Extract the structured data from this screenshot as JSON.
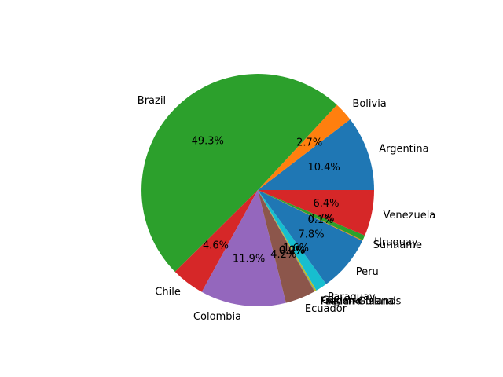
{
  "chart_data": {
    "type": "pie",
    "title": "",
    "start_angle_deg": 0,
    "direction": "counterclockwise",
    "legend": "none",
    "slices": [
      {
        "label": "Argentina",
        "value": 10.4,
        "pct_text": "10.4%",
        "color": "#1f77b4"
      },
      {
        "label": "Bolivia",
        "value": 2.7,
        "pct_text": "2.7%",
        "color": "#ff7f0e"
      },
      {
        "label": "Brazil",
        "value": 49.3,
        "pct_text": "49.3%",
        "color": "#2ca02c"
      },
      {
        "label": "Chile",
        "value": 4.6,
        "pct_text": "4.6%",
        "color": "#d62728"
      },
      {
        "label": "Colombia",
        "value": 11.9,
        "pct_text": "11.9%",
        "color": "#9467bd"
      },
      {
        "label": "Ecuador",
        "value": 4.2,
        "pct_text": "4.2%",
        "color": "#8c564b"
      },
      {
        "label": "Falkland Islands",
        "value": 0.0,
        "pct_text": "0.0%",
        "color": "#e377c2"
      },
      {
        "label": "French Guiana",
        "value": 0.1,
        "pct_text": "0.1%",
        "color": "#7f7f7f"
      },
      {
        "label": "Guyana",
        "value": 0.2,
        "pct_text": "0.2%",
        "color": "#bcbd22"
      },
      {
        "label": "Paraguay",
        "value": 1.6,
        "pct_text": "1.6%",
        "color": "#17becf"
      },
      {
        "label": "Peru",
        "value": 7.8,
        "pct_text": "7.8%",
        "color": "#1f77b4"
      },
      {
        "label": "Suriname",
        "value": 0.1,
        "pct_text": "0.1%",
        "color": "#ff7f0e"
      },
      {
        "label": "Uruguay",
        "value": 0.7,
        "pct_text": "0.7%",
        "color": "#2ca02c"
      },
      {
        "label": "Venezuela",
        "value": 6.4,
        "pct_text": "6.4%",
        "color": "#d62728"
      }
    ]
  }
}
